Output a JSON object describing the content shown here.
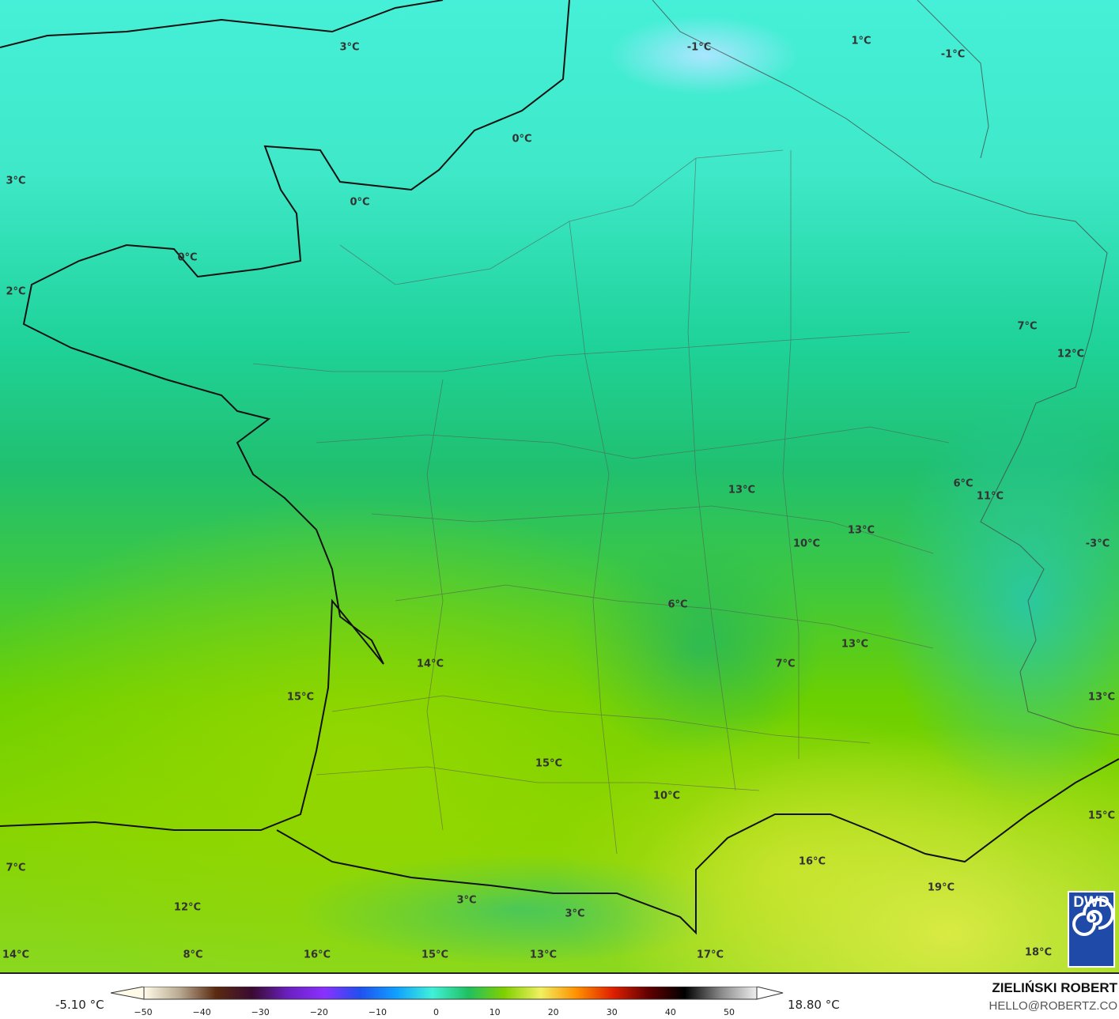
{
  "map": {
    "labels": [
      "3°C",
      "-1°C",
      "1°C",
      "-1°C",
      "0°C",
      "3°C",
      "0°C",
      "0°C",
      "2°C",
      "7°C",
      "12°C",
      "6°C",
      "11°C",
      "13°C",
      "13°C",
      "10°C",
      "-3°C",
      "6°C",
      "7°C",
      "13°C",
      "14°C",
      "15°C",
      "13°C",
      "15°C",
      "10°C",
      "15°C",
      "16°C",
      "19°C",
      "7°C",
      "12°C",
      "3°C",
      "3°C",
      "14°C",
      "8°C",
      "16°C",
      "15°C",
      "13°C",
      "17°C",
      "18°C"
    ],
    "logo": "DWD"
  },
  "legend": {
    "min_label": "-5.10 °C",
    "max_label": "18.80 °C",
    "ticks": [
      "−50",
      "−40",
      "−30",
      "−20",
      "−10",
      "0",
      "10",
      "20",
      "30",
      "40",
      "50"
    ],
    "colors": [
      "#fffbe8",
      "#b8a890",
      "#5a2a10",
      "#3a0a30",
      "#6a20c0",
      "#8a30ff",
      "#2050f0",
      "#10a0ff",
      "#40f0d8",
      "#20c060",
      "#80d000",
      "#f0f060",
      "#ff9000",
      "#e02000",
      "#600000",
      "#000000",
      "#888888",
      "#eeeeee"
    ]
  },
  "credits": {
    "author": "ZIELIŃSKI ROBERT",
    "email": "HELLO@ROBERTZ.CO"
  }
}
